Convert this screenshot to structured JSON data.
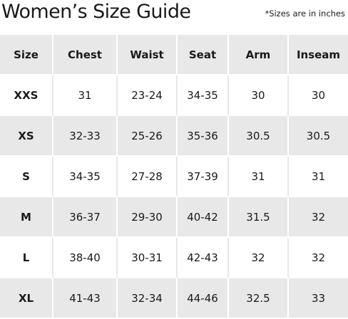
{
  "page": {
    "title": "Women’s Size Guide",
    "note": "*Sizes are in inches"
  },
  "colors": {
    "shaded_row": "#e8e8e8",
    "background": "#ffffff",
    "text": "#1a1a1a"
  },
  "table": {
    "headers": [
      "Size",
      "Chest",
      "Waist",
      "Seat",
      "Arm",
      "Inseam"
    ],
    "rows": [
      [
        "XXS",
        "31",
        "23-24",
        "34-35",
        "30",
        "30"
      ],
      [
        "XS",
        "32-33",
        "25-26",
        "35-36",
        "30.5",
        "30.5"
      ],
      [
        "S",
        "34-35",
        "27-28",
        "37-39",
        "31",
        "31"
      ],
      [
        "M",
        "36-37",
        "29-30",
        "40-42",
        "31.5",
        "32"
      ],
      [
        "L",
        "38-40",
        "30-31",
        "42-43",
        "32",
        "32"
      ],
      [
        "XL",
        "41-43",
        "32-34",
        "44-46",
        "32.5",
        "33"
      ]
    ]
  }
}
